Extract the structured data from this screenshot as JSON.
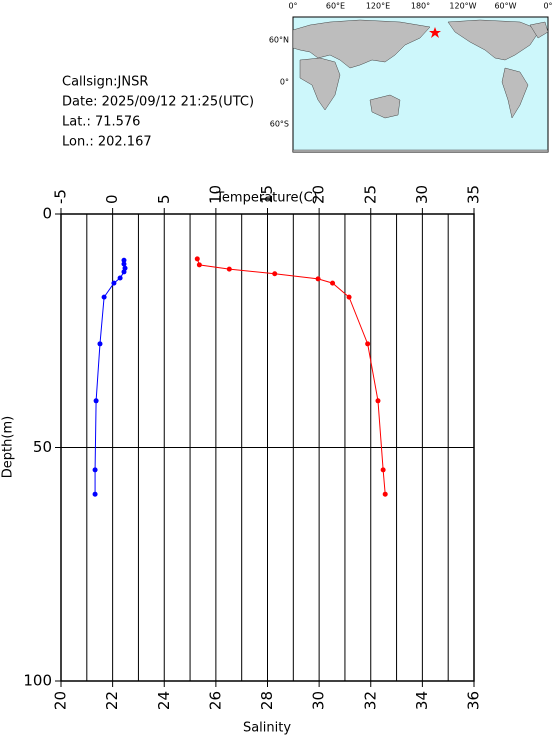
{
  "info": {
    "callsign": "Callsign:JNSR",
    "date": "Date:  2025/09/12 21:25(UTC)",
    "lat": "Lat.:  71.576",
    "lon": "Lon.:  202.167"
  },
  "map": {
    "lon_labels": [
      "0°",
      "60°E",
      "120°E",
      "180°",
      "120°W",
      "60°W",
      "0°"
    ],
    "lat_labels": [
      "60°N",
      "0°",
      "60°S"
    ]
  },
  "chart_data": {
    "type": "profile",
    "x_label": "Salinity",
    "x2_label": "Temperature(C)",
    "y_label": "Depth(m)",
    "xlim": [
      20,
      36
    ],
    "xticks": [
      20,
      22,
      24,
      26,
      28,
      30,
      32,
      34,
      36
    ],
    "xminorticks": [
      21,
      23,
      25,
      27,
      29,
      31,
      33,
      35
    ],
    "x2lim": [
      -5,
      35
    ],
    "x2ticks": [
      -5,
      0,
      5,
      10,
      15,
      20,
      25,
      30,
      35
    ],
    "ylim": [
      0,
      100
    ],
    "yticks": [
      0,
      50,
      100
    ],
    "y_inverted": true,
    "series": [
      {
        "color": "#ff0000",
        "axis": "x2",
        "x": [
          8.2,
          8.4,
          11.3,
          15.7,
          19.9,
          21.3,
          22.9,
          24.7,
          25.7,
          26.2,
          26.4
        ],
        "y": [
          9.6,
          10.9,
          11.8,
          12.8,
          13.9,
          14.8,
          17.8,
          27.8,
          40,
          54.8,
          60
        ]
      },
      {
        "color": "#0000ff",
        "axis": "x",
        "x": [
          22.44,
          22.44,
          22.48,
          22.44,
          22.29,
          22.05,
          21.67,
          21.51,
          21.36,
          21.32,
          21.32
        ],
        "y": [
          9.9,
          10.7,
          11.6,
          12.4,
          13.7,
          14.8,
          17.8,
          27.8,
          40,
          54.8,
          60
        ]
      }
    ]
  }
}
